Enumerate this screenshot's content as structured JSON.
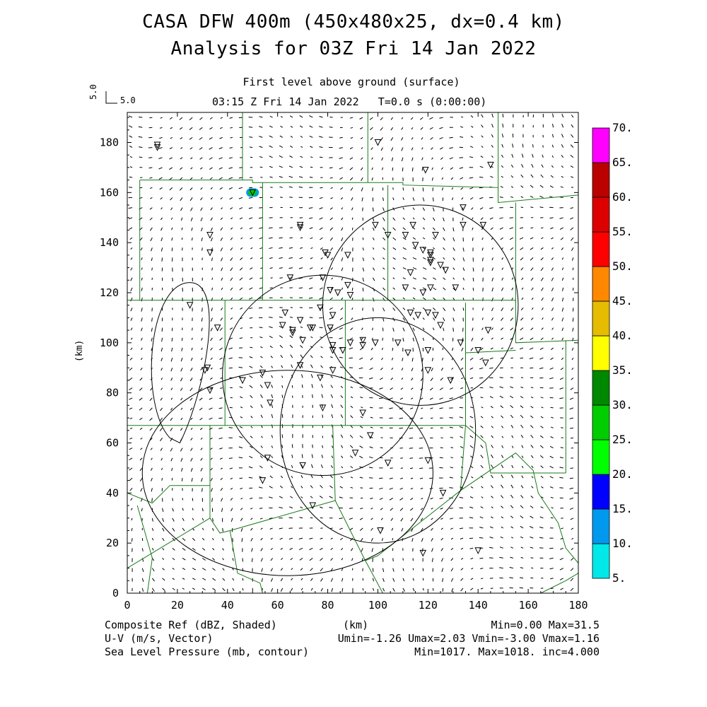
{
  "header": {
    "title_line1": "CASA DFW 400m (450x480x25, dx=0.4 km)",
    "title_line2": "Analysis for 03Z Fri 14 Jan 2022",
    "level": "First level above ground (surface)",
    "time": "03:15 Z Fri 14 Jan 2022   T=0.0 s (0:00:00)",
    "vector_scale_left": "5.0",
    "vector_scale_right": "5.0"
  },
  "chart_data": {
    "type": "heatmap",
    "xlabel": "(km)",
    "ylabel": "(km)",
    "xlim": [
      0,
      180
    ],
    "ylim": [
      0,
      192
    ],
    "x_ticks": [
      "0",
      "20",
      "40",
      "60",
      "80",
      "100",
      "120",
      "140",
      "160",
      "180"
    ],
    "y_ticks": [
      "0",
      "20",
      "40",
      "60",
      "80",
      "100",
      "120",
      "140",
      "160",
      "180"
    ],
    "colorbar": {
      "labels": [
        "5.",
        "10.",
        "15.",
        "20.",
        "25.",
        "30.",
        "35.",
        "40.",
        "45.",
        "50.",
        "55.",
        "60.",
        "65.",
        "70."
      ],
      "colors": [
        "#00e8e8",
        "#0099ee",
        "#0000ff",
        "#00ff00",
        "#00cc00",
        "#008800",
        "#ffff00",
        "#e5bc00",
        "#ff8800",
        "#ff0000",
        "#dd0000",
        "#bb0000",
        "#ff00ff"
      ]
    },
    "reflectivity_cell": {
      "x": 50,
      "y": 160,
      "value": 22
    },
    "pressure_contours_center_km": [
      [
        25,
        92
      ],
      [
        64,
        48
      ],
      [
        78,
        87
      ],
      [
        100,
        65
      ],
      [
        117,
        115
      ]
    ],
    "radar_sites_km": [
      [
        12,
        179
      ],
      [
        12,
        178
      ],
      [
        100,
        180
      ],
      [
        119,
        169
      ],
      [
        145,
        171
      ],
      [
        50,
        160
      ],
      [
        33,
        143
      ],
      [
        33,
        136
      ],
      [
        69,
        147
      ],
      [
        69,
        146
      ],
      [
        99,
        147
      ],
      [
        104,
        143
      ],
      [
        111,
        143
      ],
      [
        114,
        147
      ],
      [
        123,
        143
      ],
      [
        134,
        154
      ],
      [
        134,
        147
      ],
      [
        142,
        147
      ],
      [
        79,
        136
      ],
      [
        80,
        135
      ],
      [
        88,
        135
      ],
      [
        115,
        139
      ],
      [
        118,
        137
      ],
      [
        121,
        136
      ],
      [
        121,
        135
      ],
      [
        121,
        133
      ],
      [
        121,
        132
      ],
      [
        125,
        131
      ],
      [
        127,
        129
      ],
      [
        113,
        128
      ],
      [
        65,
        126
      ],
      [
        78,
        126
      ],
      [
        81,
        121
      ],
      [
        84,
        120
      ],
      [
        88,
        123
      ],
      [
        89,
        119
      ],
      [
        111,
        122
      ],
      [
        118,
        120
      ],
      [
        121,
        122
      ],
      [
        131,
        122
      ],
      [
        25,
        115
      ],
      [
        36,
        106
      ],
      [
        63,
        112
      ],
      [
        77,
        114
      ],
      [
        82,
        111
      ],
      [
        69,
        109
      ],
      [
        73,
        106
      ],
      [
        74,
        106
      ],
      [
        62,
        107
      ],
      [
        66,
        104
      ],
      [
        66,
        105
      ],
      [
        70,
        101
      ],
      [
        81,
        106
      ],
      [
        82,
        99
      ],
      [
        82,
        97
      ],
      [
        89,
        100
      ],
      [
        94,
        101
      ],
      [
        94,
        99
      ],
      [
        99,
        100
      ],
      [
        108,
        100
      ],
      [
        112,
        96
      ],
      [
        116,
        111
      ],
      [
        120,
        112
      ],
      [
        123,
        111
      ],
      [
        125,
        107
      ],
      [
        133,
        100
      ],
      [
        140,
        97
      ],
      [
        144,
        105
      ],
      [
        86,
        97
      ],
      [
        113,
        112
      ],
      [
        32,
        90
      ],
      [
        31,
        89
      ],
      [
        33,
        81
      ],
      [
        46,
        85
      ],
      [
        54,
        88
      ],
      [
        56,
        83
      ],
      [
        69,
        91
      ],
      [
        77,
        86
      ],
      [
        82,
        89
      ],
      [
        120,
        97
      ],
      [
        120,
        89
      ],
      [
        129,
        85
      ],
      [
        143,
        92
      ],
      [
        57,
        76
      ],
      [
        78,
        74
      ],
      [
        94,
        72
      ],
      [
        97,
        63
      ],
      [
        91,
        56
      ],
      [
        104,
        52
      ],
      [
        56,
        54
      ],
      [
        70,
        51
      ],
      [
        120,
        53
      ],
      [
        54,
        45
      ],
      [
        74,
        35
      ],
      [
        126,
        40
      ],
      [
        101,
        25
      ],
      [
        118,
        16
      ],
      [
        140,
        17
      ]
    ]
  },
  "footer": {
    "left1": "Composite Ref (dBZ, Shaded)",
    "left2": "U-V (m/s, Vector)",
    "left3": "Sea Level Pressure (mb, contour)",
    "center_xunit": "(km)",
    "right1": "Min=0.00 Max=31.5",
    "right2": "Umin=-1.26 Umax=2.03 Vmin=-3.00 Vmax=1.16",
    "right3": "Min=1017. Max=1018. inc=4.000"
  }
}
